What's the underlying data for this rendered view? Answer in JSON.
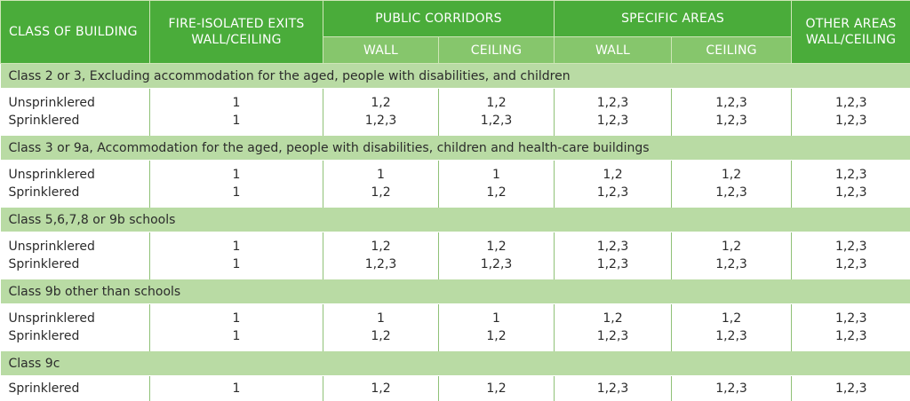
{
  "header": {
    "class_of_building": "CLASS OF BUILDING",
    "fire_isolated_exits": "FIRE-ISOLATED EXITS WALL/CEILING",
    "public_corridors": "PUBLIC CORRIDORS",
    "specific_areas": "SPECIFIC AREAS",
    "other_areas": "OTHER AREAS WALL/CEILING",
    "pc_wall": "WALL",
    "pc_ceiling": "CEILING",
    "sa_wall": "WALL",
    "sa_ceiling": "CEILING"
  },
  "sections": [
    {
      "title": "Class 2 or 3, Excluding accommodation for the aged, people with disabilities, and children",
      "rows": [
        {
          "label": "Unsprinklered",
          "cells": [
            "1",
            "1,2",
            "1,2",
            "1,2,3",
            "1,2,3",
            "1,2,3"
          ]
        },
        {
          "label": "Sprinklered",
          "cells": [
            "1",
            "1,2,3",
            "1,2,3",
            "1,2,3",
            "1,2,3",
            "1,2,3"
          ]
        }
      ]
    },
    {
      "title": "Class 3 or 9a, Accommodation for the aged, people with disabilities, children and health-care buildings",
      "rows": [
        {
          "label": "Unsprinklered",
          "cells": [
            "1",
            "1",
            "1",
            "1,2",
            "1,2",
            "1,2,3"
          ]
        },
        {
          "label": "Sprinklered",
          "cells": [
            "1",
            "1,2",
            "1,2",
            "1,2,3",
            "1,2,3",
            "1,2,3"
          ]
        }
      ]
    },
    {
      "title": "Class 5,6,7,8 or 9b schools",
      "rows": [
        {
          "label": "Unsprinklered",
          "cells": [
            "1",
            "1,2",
            "1,2",
            "1,2,3",
            "1,2",
            "1,2,3"
          ]
        },
        {
          "label": "Sprinklered",
          "cells": [
            "1",
            "1,2,3",
            "1,2,3",
            "1,2,3",
            "1,2,3",
            "1,2,3"
          ]
        }
      ]
    },
    {
      "title": "Class 9b other than schools",
      "rows": [
        {
          "label": "Unsprinklered",
          "cells": [
            "1",
            "1",
            "1",
            "1,2",
            "1,2",
            "1,2,3"
          ]
        },
        {
          "label": "Sprinklered",
          "cells": [
            "1",
            "1,2",
            "1,2",
            "1,2,3",
            "1,2,3",
            "1,2,3"
          ]
        }
      ]
    },
    {
      "title": "Class 9c",
      "rows": [
        {
          "label": "Sprinklered",
          "cells": [
            "1",
            "1,2",
            "1,2",
            "1,2,3",
            "1,2,3",
            "1,2,3"
          ]
        }
      ]
    }
  ]
}
